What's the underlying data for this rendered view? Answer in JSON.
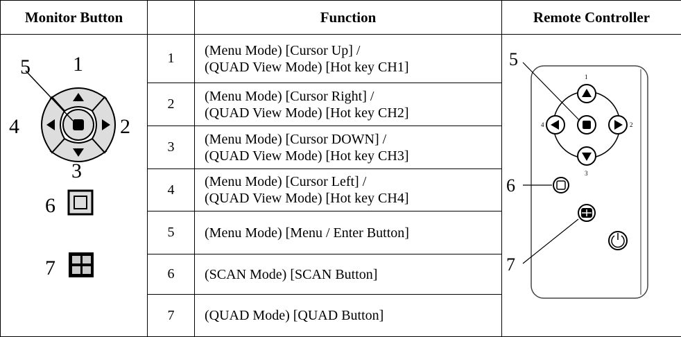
{
  "header": {
    "monitor_button": "Monitor Button",
    "function": "Function",
    "remote_controller": "Remote Controller"
  },
  "rows": [
    {
      "number": "1",
      "function": [
        "(Menu Mode) [Cursor Up] /",
        "(QUAD View Mode) [Hot key CH1]"
      ]
    },
    {
      "number": "2",
      "function": [
        "(Menu Mode) [Cursor Right] /",
        "(QUAD View Mode) [Hot key CH2]"
      ]
    },
    {
      "number": "3",
      "function": [
        "(Menu Mode) [Cursor DOWN] /",
        "(QUAD View Mode) [Hot key CH3]"
      ]
    },
    {
      "number": "4",
      "function": [
        "(Menu Mode) [Cursor Left] /",
        "(QUAD View Mode) [Hot key CH4]"
      ]
    },
    {
      "number": "5",
      "function": [
        "(Menu Mode) [Menu / Enter Button]"
      ]
    },
    {
      "number": "6",
      "function": [
        "(SCAN Mode) [SCAN Button]"
      ]
    },
    {
      "number": "7",
      "function": [
        "(QUAD Mode) [QUAD Button]"
      ]
    }
  ],
  "monitor_labels": [
    "5",
    "1",
    "4",
    "2",
    "3",
    "6",
    "7"
  ],
  "remote_labels": [
    "5",
    "6",
    "7",
    "1",
    "4",
    "2",
    "3"
  ]
}
